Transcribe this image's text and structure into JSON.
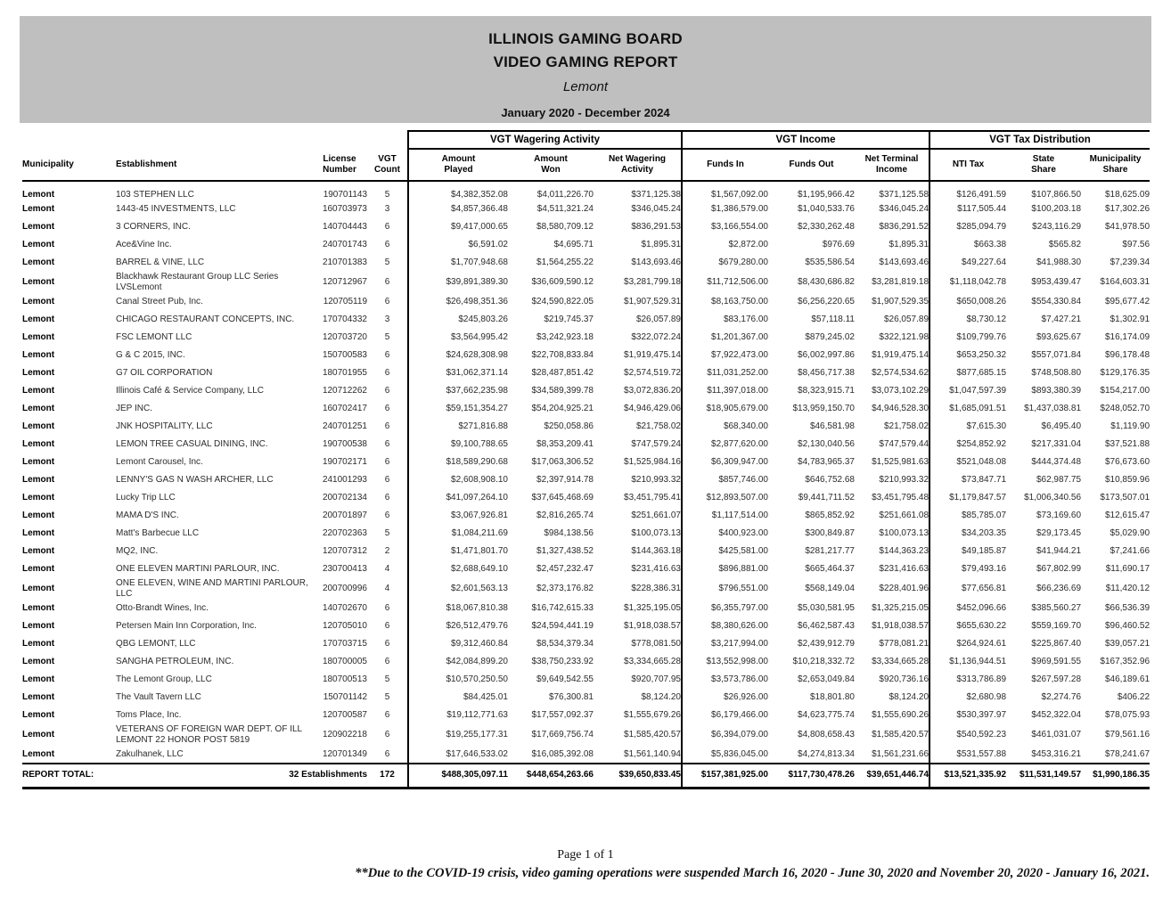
{
  "header": {
    "title_line1": "ILLINOIS GAMING BOARD",
    "title_line2": "VIDEO GAMING REPORT",
    "municipality": "Lemont",
    "date_range": "January 2020 - December 2024"
  },
  "table": {
    "group_headers": [
      "VGT Wagering Activity",
      "VGT Income",
      "VGT Tax Distribution"
    ],
    "columns": [
      {
        "l1": "",
        "l2": "Municipality"
      },
      {
        "l1": "",
        "l2": "Establishment"
      },
      {
        "l1": "License",
        "l2": "Number"
      },
      {
        "l1": "VGT",
        "l2": "Count"
      },
      {
        "l1": "Amount",
        "l2": "Played"
      },
      {
        "l1": "Amount",
        "l2": "Won"
      },
      {
        "l1": "Net Wagering",
        "l2": "Activity"
      },
      {
        "l1": "",
        "l2": "Funds In"
      },
      {
        "l1": "",
        "l2": "Funds Out"
      },
      {
        "l1": "Net Terminal",
        "l2": "Income"
      },
      {
        "l1": "",
        "l2": "NTI Tax"
      },
      {
        "l1": "State",
        "l2": "Share"
      },
      {
        "l1": "Municipality",
        "l2": "Share"
      }
    ],
    "rows": [
      [
        "Lemont",
        "103 STEPHEN LLC",
        "190701143",
        "5",
        "$4,382,352.08",
        "$4,011,226.70",
        "$371,125.38",
        "$1,567,092.00",
        "$1,195,966.42",
        "$371,125.58",
        "$126,491.59",
        "$107,866.50",
        "$18,625.09"
      ],
      [
        "Lemont",
        "1443-45 INVESTMENTS, LLC",
        "160703973",
        "3",
        "$4,857,366.48",
        "$4,511,321.24",
        "$346,045.24",
        "$1,386,579.00",
        "$1,040,533.76",
        "$346,045.24",
        "$117,505.44",
        "$100,203.18",
        "$17,302.26"
      ],
      [
        "Lemont",
        "3 CORNERS, INC.",
        "140704443",
        "6",
        "$9,417,000.65",
        "$8,580,709.12",
        "$836,291.53",
        "$3,166,554.00",
        "$2,330,262.48",
        "$836,291.52",
        "$285,094.79",
        "$243,116.29",
        "$41,978.50"
      ],
      [
        "Lemont",
        "Ace&Vine Inc.",
        "240701743",
        "6",
        "$6,591.02",
        "$4,695.71",
        "$1,895.31",
        "$2,872.00",
        "$976.69",
        "$1,895.31",
        "$663.38",
        "$565.82",
        "$97.56"
      ],
      [
        "Lemont",
        "BARREL & VINE, LLC",
        "210701383",
        "5",
        "$1,707,948.68",
        "$1,564,255.22",
        "$143,693.46",
        "$679,280.00",
        "$535,586.54",
        "$143,693.46",
        "$49,227.64",
        "$41,988.30",
        "$7,239.34"
      ],
      [
        "Lemont",
        "Blackhawk Restaurant Group LLC Series LVSLemont",
        "120712967",
        "6",
        "$39,891,389.30",
        "$36,609,590.12",
        "$3,281,799.18",
        "$11,712,506.00",
        "$8,430,686.82",
        "$3,281,819.18",
        "$1,118,042.78",
        "$953,439.47",
        "$164,603.31"
      ],
      [
        "Lemont",
        "Canal Street Pub, Inc.",
        "120705119",
        "6",
        "$26,498,351.36",
        "$24,590,822.05",
        "$1,907,529.31",
        "$8,163,750.00",
        "$6,256,220.65",
        "$1,907,529.35",
        "$650,008.26",
        "$554,330.84",
        "$95,677.42"
      ],
      [
        "Lemont",
        "CHICAGO RESTAURANT CONCEPTS, INC.",
        "170704332",
        "3",
        "$245,803.26",
        "$219,745.37",
        "$26,057.89",
        "$83,176.00",
        "$57,118.11",
        "$26,057.89",
        "$8,730.12",
        "$7,427.21",
        "$1,302.91"
      ],
      [
        "Lemont",
        "FSC LEMONT LLC",
        "120703720",
        "5",
        "$3,564,995.42",
        "$3,242,923.18",
        "$322,072.24",
        "$1,201,367.00",
        "$879,245.02",
        "$322,121.98",
        "$109,799.76",
        "$93,625.67",
        "$16,174.09"
      ],
      [
        "Lemont",
        "G & C 2015, INC.",
        "150700583",
        "6",
        "$24,628,308.98",
        "$22,708,833.84",
        "$1,919,475.14",
        "$7,922,473.00",
        "$6,002,997.86",
        "$1,919,475.14",
        "$653,250.32",
        "$557,071.84",
        "$96,178.48"
      ],
      [
        "Lemont",
        "G7 OIL CORPORATION",
        "180701955",
        "6",
        "$31,062,371.14",
        "$28,487,851.42",
        "$2,574,519.72",
        "$11,031,252.00",
        "$8,456,717.38",
        "$2,574,534.62",
        "$877,685.15",
        "$748,508.80",
        "$129,176.35"
      ],
      [
        "Lemont",
        "Illinois Café & Service Company, LLC",
        "120712262",
        "6",
        "$37,662,235.98",
        "$34,589,399.78",
        "$3,072,836.20",
        "$11,397,018.00",
        "$8,323,915.71",
        "$3,073,102.29",
        "$1,047,597.39",
        "$893,380.39",
        "$154,217.00"
      ],
      [
        "Lemont",
        "JEP INC.",
        "160702417",
        "6",
        "$59,151,354.27",
        "$54,204,925.21",
        "$4,946,429.06",
        "$18,905,679.00",
        "$13,959,150.70",
        "$4,946,528.30",
        "$1,685,091.51",
        "$1,437,038.81",
        "$248,052.70"
      ],
      [
        "Lemont",
        "JNK HOSPITALITY, LLC",
        "240701251",
        "6",
        "$271,816.88",
        "$250,058.86",
        "$21,758.02",
        "$68,340.00",
        "$46,581.98",
        "$21,758.02",
        "$7,615.30",
        "$6,495.40",
        "$1,119.90"
      ],
      [
        "Lemont",
        "LEMON TREE CASUAL DINING, INC.",
        "190700538",
        "6",
        "$9,100,788.65",
        "$8,353,209.41",
        "$747,579.24",
        "$2,877,620.00",
        "$2,130,040.56",
        "$747,579.44",
        "$254,852.92",
        "$217,331.04",
        "$37,521.88"
      ],
      [
        "Lemont",
        "Lemont Carousel, Inc.",
        "190702171",
        "6",
        "$18,589,290.68",
        "$17,063,306.52",
        "$1,525,984.16",
        "$6,309,947.00",
        "$4,783,965.37",
        "$1,525,981.63",
        "$521,048.08",
        "$444,374.48",
        "$76,673.60"
      ],
      [
        "Lemont",
        "LENNY'S GAS N WASH ARCHER, LLC",
        "241001293",
        "6",
        "$2,608,908.10",
        "$2,397,914.78",
        "$210,993.32",
        "$857,746.00",
        "$646,752.68",
        "$210,993.32",
        "$73,847.71",
        "$62,987.75",
        "$10,859.96"
      ],
      [
        "Lemont",
        "Lucky Trip LLC",
        "200702134",
        "6",
        "$41,097,264.10",
        "$37,645,468.69",
        "$3,451,795.41",
        "$12,893,507.00",
        "$9,441,711.52",
        "$3,451,795.48",
        "$1,179,847.57",
        "$1,006,340.56",
        "$173,507.01"
      ],
      [
        "Lemont",
        "MAMA D'S INC.",
        "200701897",
        "6",
        "$3,067,926.81",
        "$2,816,265.74",
        "$251,661.07",
        "$1,117,514.00",
        "$865,852.92",
        "$251,661.08",
        "$85,785.07",
        "$73,169.60",
        "$12,615.47"
      ],
      [
        "Lemont",
        "Matt's Barbecue LLC",
        "220702363",
        "5",
        "$1,084,211.69",
        "$984,138.56",
        "$100,073.13",
        "$400,923.00",
        "$300,849.87",
        "$100,073.13",
        "$34,203.35",
        "$29,173.45",
        "$5,029.90"
      ],
      [
        "Lemont",
        "MQ2, INC.",
        "120707312",
        "2",
        "$1,471,801.70",
        "$1,327,438.52",
        "$144,363.18",
        "$425,581.00",
        "$281,217.77",
        "$144,363.23",
        "$49,185.87",
        "$41,944.21",
        "$7,241.66"
      ],
      [
        "Lemont",
        "ONE ELEVEN MARTINI PARLOUR, INC.",
        "230700413",
        "4",
        "$2,688,649.10",
        "$2,457,232.47",
        "$231,416.63",
        "$896,881.00",
        "$665,464.37",
        "$231,416.63",
        "$79,493.16",
        "$67,802.99",
        "$11,690.17"
      ],
      [
        "Lemont",
        "ONE ELEVEN, WINE AND MARTINI PARLOUR, LLC",
        "200700996",
        "4",
        "$2,601,563.13",
        "$2,373,176.82",
        "$228,386.31",
        "$796,551.00",
        "$568,149.04",
        "$228,401.96",
        "$77,656.81",
        "$66,236.69",
        "$11,420.12"
      ],
      [
        "Lemont",
        "Otto-Brandt Wines, Inc.",
        "140702670",
        "6",
        "$18,067,810.38",
        "$16,742,615.33",
        "$1,325,195.05",
        "$6,355,797.00",
        "$5,030,581.95",
        "$1,325,215.05",
        "$452,096.66",
        "$385,560.27",
        "$66,536.39"
      ],
      [
        "Lemont",
        "Petersen Main Inn Corporation, Inc.",
        "120705010",
        "6",
        "$26,512,479.76",
        "$24,594,441.19",
        "$1,918,038.57",
        "$8,380,626.00",
        "$6,462,587.43",
        "$1,918,038.57",
        "$655,630.22",
        "$559,169.70",
        "$96,460.52"
      ],
      [
        "Lemont",
        "QBG LEMONT, LLC",
        "170703715",
        "6",
        "$9,312,460.84",
        "$8,534,379.34",
        "$778,081.50",
        "$3,217,994.00",
        "$2,439,912.79",
        "$778,081.21",
        "$264,924.61",
        "$225,867.40",
        "$39,057.21"
      ],
      [
        "Lemont",
        "SANGHA PETROLEUM, INC.",
        "180700005",
        "6",
        "$42,084,899.20",
        "$38,750,233.92",
        "$3,334,665.28",
        "$13,552,998.00",
        "$10,218,332.72",
        "$3,334,665.28",
        "$1,136,944.51",
        "$969,591.55",
        "$167,352.96"
      ],
      [
        "Lemont",
        "The Lemont Group, LLC",
        "180700513",
        "5",
        "$10,570,250.50",
        "$9,649,542.55",
        "$920,707.95",
        "$3,573,786.00",
        "$2,653,049.84",
        "$920,736.16",
        "$313,786.89",
        "$267,597.28",
        "$46,189.61"
      ],
      [
        "Lemont",
        "The Vault Tavern LLC",
        "150701142",
        "5",
        "$84,425.01",
        "$76,300.81",
        "$8,124.20",
        "$26,926.00",
        "$18,801.80",
        "$8,124.20",
        "$2,680.98",
        "$2,274.76",
        "$406.22"
      ],
      [
        "Lemont",
        "Toms Place, Inc.",
        "120700587",
        "6",
        "$19,112,771.63",
        "$17,557,092.37",
        "$1,555,679.26",
        "$6,179,466.00",
        "$4,623,775.74",
        "$1,555,690.26",
        "$530,397.97",
        "$452,322.04",
        "$78,075.93"
      ],
      [
        "Lemont",
        "VETERANS OF FOREIGN WAR DEPT. OF ILL LEMONT 22 HONOR POST 5819",
        "120902218",
        "6",
        "$19,255,177.31",
        "$17,669,756.74",
        "$1,585,420.57",
        "$6,394,079.00",
        "$4,808,658.43",
        "$1,585,420.57",
        "$540,592.23",
        "$461,031.07",
        "$79,561.16"
      ],
      [
        "Lemont",
        "Zakulhanek, LLC",
        "120701349",
        "6",
        "$17,646,533.02",
        "$16,085,392.08",
        "$1,561,140.94",
        "$5,836,045.00",
        "$4,274,813.34",
        "$1,561,231.66",
        "$531,557.88",
        "$453,316.21",
        "$78,241.67"
      ]
    ],
    "total": {
      "label": "REPORT TOTAL:",
      "establishments": "32 Establishments",
      "vgt_count": "172",
      "amount_played": "$488,305,097.11",
      "amount_won": "$448,654,263.66",
      "net_wagering": "$39,650,833.45",
      "funds_in": "$157,381,925.00",
      "funds_out": "$117,730,478.26",
      "net_terminal_income": "$39,651,446.74",
      "nti_tax": "$13,521,335.92",
      "state_share": "$11,531,149.57",
      "municipality_share": "$1,990,186.35"
    }
  },
  "footer": {
    "page": "Page 1 of 1",
    "note": "**Due to the COVID-19 crisis, video gaming operations were suspended March 16, 2020 - June 30, 2020 and November 20, 2020 - January 16, 2021."
  }
}
